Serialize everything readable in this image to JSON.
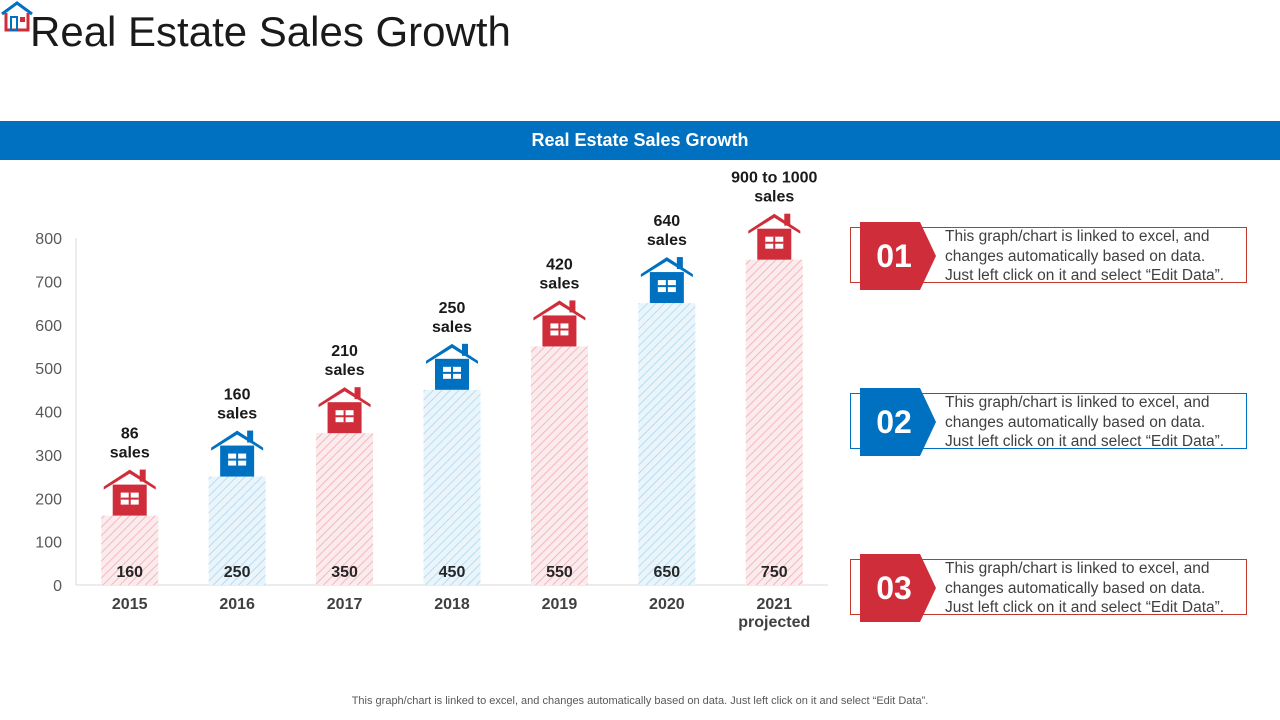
{
  "title": "Real Estate Sales Growth",
  "banner": "Real Estate Sales Growth",
  "colors": {
    "red": "#cf2d3a",
    "blue": "#0070c0",
    "red_hatch": "#f2b6bd",
    "blue_hatch": "#aed6ee"
  },
  "chart_data": {
    "type": "bar",
    "title": "Real Estate Sales Growth",
    "xlabel": "",
    "ylabel": "",
    "ylim": [
      0,
      800
    ],
    "yticks": [
      "0",
      "100",
      "200",
      "300",
      "400",
      "500",
      "600",
      "700",
      "800"
    ],
    "categories": [
      [
        "2015"
      ],
      [
        "2016"
      ],
      [
        "2017"
      ],
      [
        "2018"
      ],
      [
        "2019"
      ],
      [
        "2020"
      ],
      [
        "2021",
        "projected"
      ]
    ],
    "values": [
      160,
      250,
      350,
      450,
      550,
      650,
      750
    ],
    "value_labels": [
      "160",
      "250",
      "350",
      "450",
      "550",
      "650",
      "750"
    ],
    "annotations": [
      [
        "86",
        "sales"
      ],
      [
        "160",
        "sales"
      ],
      [
        "210",
        "sales"
      ],
      [
        "250",
        "sales"
      ],
      [
        "420",
        "sales"
      ],
      [
        "640",
        "sales"
      ],
      [
        "900 to 1000",
        "sales"
      ]
    ],
    "bar_colors": [
      "red",
      "blue",
      "red",
      "blue",
      "red",
      "blue",
      "red"
    ]
  },
  "notes": [
    {
      "number": "01",
      "color": "red",
      "lines": [
        "This graph/chart  is linked to excel, and",
        "changes automatically  based on data.",
        "Just left click on it and select “Edit Data”."
      ]
    },
    {
      "number": "02",
      "color": "blue",
      "lines": [
        "This graph/chart  is linked to excel, and",
        "changes automatically  based on data.",
        "Just left click on it and select “Edit Data”."
      ]
    },
    {
      "number": "03",
      "color": "red",
      "lines": [
        "This graph/chart  is linked to excel, and",
        "changes automatically  based on data.",
        "Just left click on it and select “Edit Data”."
      ]
    }
  ],
  "footer": "This graph/chart is linked to excel,  and changes automatically based on data. Just left click on it and select “Edit Data”."
}
